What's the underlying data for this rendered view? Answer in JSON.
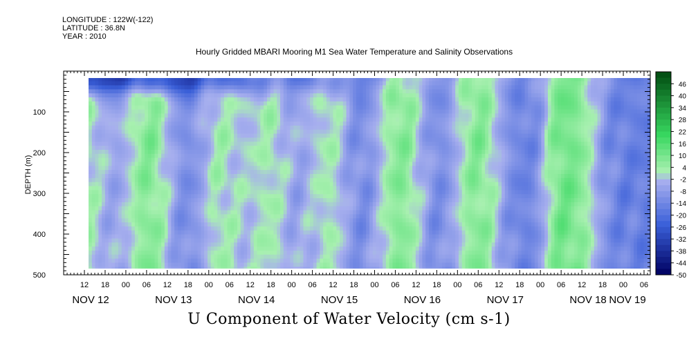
{
  "meta": {
    "longitude": "LONGITUDE : 122W(-122)",
    "latitude": "LATITUDE : 36.8N",
    "year": "YEAR : 2010"
  },
  "chart_data": {
    "type": "heatmap",
    "title": "Hourly Gridded MBARI Mooring M1 Sea Water Temperature and Salinity Observations",
    "subtitle": "U Component of Water Velocity (cm s-1)",
    "ylabel": "DEPTH (m)",
    "y_axis": {
      "range": [
        0,
        500
      ],
      "inverted": true,
      "ticks": [
        "100",
        "200",
        "300",
        "400",
        "500"
      ]
    },
    "x_axis": {
      "hour_ticks": [
        "12",
        "18",
        "00",
        "06",
        "12",
        "18",
        "00",
        "06",
        "12",
        "18",
        "00",
        "06",
        "12",
        "18",
        "00",
        "06",
        "12",
        "18",
        "00",
        "06",
        "12",
        "18",
        "00",
        "06",
        "12",
        "18",
        "00",
        "06"
      ],
      "day_labels": [
        "NOV 12",
        "NOV 13",
        "NOV 14",
        "NOV 15",
        "NOV 16",
        "NOV 17",
        "NOV 18",
        "NOV 19"
      ]
    },
    "data_extent": {
      "depth_range": [
        15,
        490
      ]
    },
    "colorbar": {
      "levels": [
        "46",
        "40",
        "34",
        "28",
        "22",
        "16",
        "10",
        "4",
        "-2",
        "-8",
        "-14",
        "-20",
        "-26",
        "-32",
        "-38",
        "-44",
        "-50"
      ],
      "min": -50,
      "max": 52,
      "step": 3
    },
    "palette": {
      "dark_blue": "#000060",
      "mid_blue": "#3a5fd8",
      "light_blue": "#a7afee",
      "pale_green": "#a8f0b0",
      "green": "#38d860",
      "dark_green": "#004a10"
    },
    "band_values": [
      {
        "day": "NOV 12",
        "hour": "12",
        "sign": "positive"
      },
      {
        "day": "NOV 12",
        "hour": "18",
        "sign": "negative"
      },
      {
        "day": "NOV 13",
        "hour": "06",
        "sign": "positive"
      },
      {
        "day": "NOV 13",
        "hour": "18",
        "sign": "negative"
      },
      {
        "day": "NOV 14",
        "hour": "06",
        "sign": "positive"
      },
      {
        "day": "NOV 14",
        "hour": "12",
        "sign": "negative"
      },
      {
        "day": "NOV 14",
        "hour": "18",
        "sign": "positive"
      },
      {
        "day": "NOV 15",
        "hour": "06",
        "sign": "negative"
      },
      {
        "day": "NOV 15",
        "hour": "12",
        "sign": "positive"
      },
      {
        "day": "NOV 16",
        "hour": "00",
        "sign": "negative"
      },
      {
        "day": "NOV 16",
        "hour": "12",
        "sign": "positive"
      },
      {
        "day": "NOV 17",
        "hour": "00",
        "sign": "negative"
      },
      {
        "day": "NOV 17",
        "hour": "12",
        "sign": "positive"
      },
      {
        "day": "NOV 18",
        "hour": "00",
        "sign": "negative"
      },
      {
        "day": "NOV 18",
        "hour": "18",
        "sign": "positive"
      },
      {
        "day": "NOV 19",
        "hour": "06",
        "sign": "negative"
      }
    ]
  }
}
